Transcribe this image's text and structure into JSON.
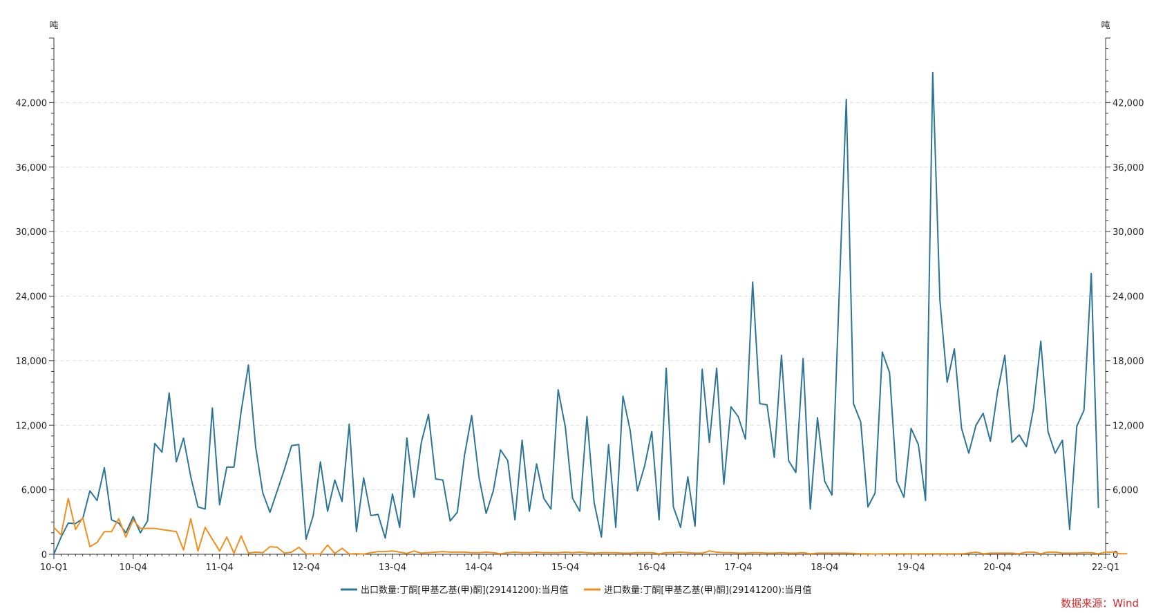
{
  "chart_data": {
    "type": "line",
    "left_unit": "吨",
    "right_unit": "吨",
    "ylim": [
      0,
      48000
    ],
    "yticks": [
      0,
      6000,
      12000,
      18000,
      24000,
      30000,
      36000,
      42000
    ],
    "ytick_labels": [
      "0",
      "6,000",
      "12,000",
      "18,000",
      "24,000",
      "30,000",
      "36,000",
      "42,000"
    ],
    "x_start": "2010-01",
    "x_end": "2022-03",
    "xticks": [
      {
        "month": "2010-01",
        "label": "10-Q1"
      },
      {
        "month": "2010-12",
        "label": "10-Q4"
      },
      {
        "month": "2011-12",
        "label": "11-Q4"
      },
      {
        "month": "2012-12",
        "label": "12-Q4"
      },
      {
        "month": "2013-12",
        "label": "13-Q4"
      },
      {
        "month": "2014-12",
        "label": "14-Q4"
      },
      {
        "month": "2015-12",
        "label": "15-Q4"
      },
      {
        "month": "2016-12",
        "label": "16-Q4"
      },
      {
        "month": "2017-12",
        "label": "17-Q4"
      },
      {
        "month": "2018-12",
        "label": "18-Q4"
      },
      {
        "month": "2019-12",
        "label": "19-Q4"
      },
      {
        "month": "2020-12",
        "label": "20-Q4"
      },
      {
        "month": "2022-03",
        "label": "22-Q1"
      }
    ],
    "grid": true,
    "legend_position": "bottom",
    "series": [
      {
        "name": "出口数量:丁酮[甲基乙基(甲)酮](29141200):当月值",
        "color": "#2b7596",
        "values": [
          0,
          1600,
          2900,
          2850,
          3300,
          5900,
          5000,
          8050,
          3200,
          2900,
          2000,
          3500,
          2000,
          3100,
          10300,
          9500,
          15000,
          8600,
          10800,
          7200,
          4400,
          4200,
          13600,
          4600,
          8100,
          8100,
          13300,
          17600,
          10000,
          5700,
          3900,
          5900,
          7900,
          10100,
          10200,
          1400,
          3600,
          8600,
          4000,
          6900,
          4900,
          12100,
          2100,
          7100,
          3600,
          3700,
          1500,
          5600,
          2500,
          10800,
          5300,
          10400,
          13000,
          7000,
          6900,
          3100,
          3900,
          9200,
          12900,
          7200,
          3800,
          5900,
          9700,
          8700,
          3200,
          10600,
          4000,
          8400,
          5200,
          4200,
          15300,
          11800,
          5200,
          4000,
          12800,
          4800,
          1600,
          10200,
          2500,
          14700,
          11500,
          5900,
          8200,
          11400,
          3200,
          17300,
          4400,
          2500,
          7200,
          2600,
          17200,
          10400,
          17300,
          6500,
          13700,
          12800,
          10700,
          25300,
          14000,
          13900,
          9000,
          18500,
          8700,
          7600,
          18200,
          4200,
          12700,
          6800,
          5500,
          24000,
          42300,
          14000,
          12300,
          4400,
          5700,
          18800,
          16900,
          6800,
          5300,
          11700,
          10200,
          5000,
          44800,
          23600,
          16000,
          19100,
          11700,
          9400,
          12000,
          13100,
          10500,
          15100,
          18500,
          10400,
          11100,
          10000,
          13600,
          19800,
          11400,
          9400,
          10600,
          2300,
          11900,
          13400,
          26100,
          4300
        ]
      },
      {
        "name": "进口数量:丁酮[甲基乙基(甲)酮](29141200):当月值",
        "color": "#f28e1c",
        "values": [
          2500,
          1800,
          5200,
          2300,
          3400,
          700,
          1100,
          2100,
          2100,
          3300,
          1600,
          3200,
          2400,
          2400,
          2400,
          2300,
          2200,
          2100,
          400,
          3300,
          300,
          2500,
          1400,
          300,
          1600,
          100,
          1700,
          100,
          200,
          150,
          700,
          650,
          100,
          200,
          650,
          50,
          30,
          30,
          850,
          80,
          550,
          30,
          60,
          20,
          150,
          250,
          250,
          300,
          200,
          80,
          300,
          100,
          150,
          200,
          250,
          200,
          200,
          200,
          150,
          150,
          200,
          150,
          50,
          150,
          200,
          150,
          150,
          200,
          150,
          150,
          150,
          200,
          150,
          200,
          150,
          100,
          150,
          150,
          150,
          100,
          100,
          150,
          150,
          150,
          50,
          150,
          150,
          200,
          150,
          100,
          100,
          300,
          200,
          150,
          150,
          100,
          100,
          150,
          150,
          100,
          100,
          150,
          100,
          100,
          150,
          50,
          100,
          100,
          100,
          100,
          100,
          80,
          50,
          50,
          20,
          50,
          50,
          50,
          50,
          50,
          50,
          50,
          50,
          50,
          50,
          50,
          50,
          100,
          200,
          50,
          100,
          100,
          100,
          100,
          50,
          200,
          200,
          50,
          200,
          200,
          100,
          100,
          100,
          150,
          150,
          50,
          200,
          200,
          50,
          50
        ]
      }
    ],
    "source": "数据来源：Wind"
  }
}
